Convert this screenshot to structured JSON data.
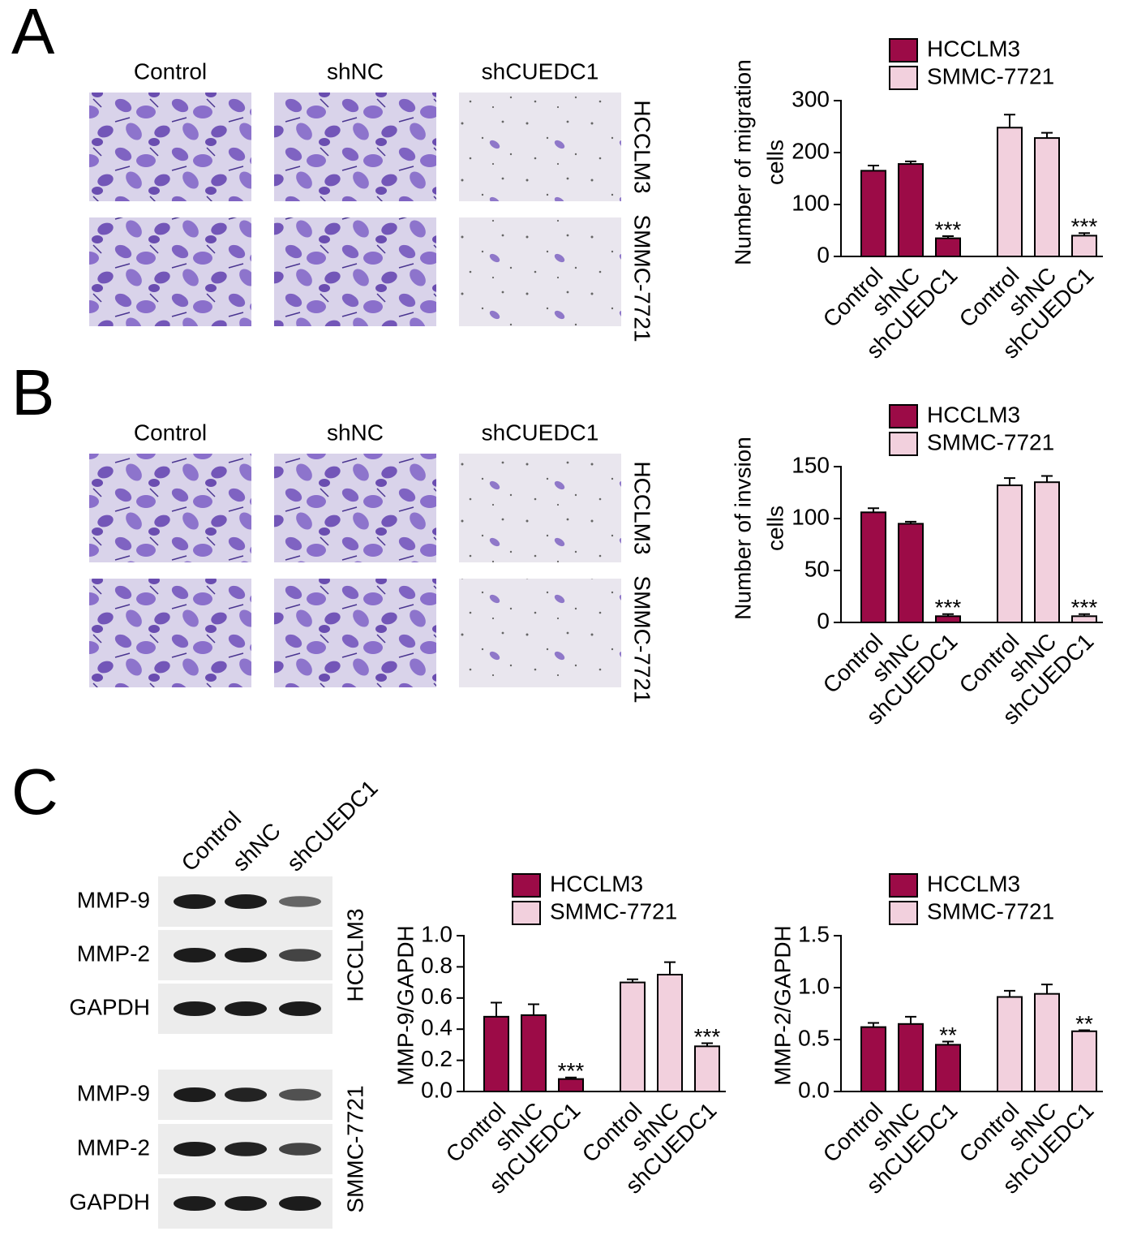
{
  "panel_a": {
    "label": "A",
    "columns": [
      "Control",
      "shNC",
      "shCUEDC1"
    ],
    "rows": [
      "HCCLM3",
      "SMMC-7721"
    ]
  },
  "panel_b": {
    "label": "B",
    "columns": [
      "Control",
      "shNC",
      "shCUEDC1"
    ],
    "rows": [
      "HCCLM3",
      "SMMC-7721"
    ]
  },
  "panel_c": {
    "label": "C",
    "columns": [
      "Control",
      "shNC",
      "shCUEDC1"
    ],
    "groups": [
      {
        "name": "HCCLM3",
        "rows": [
          "MMP-9",
          "MMP-2",
          "GAPDH"
        ]
      },
      {
        "name": "SMMC-7721",
        "rows": [
          "MMP-9",
          "MMP-2",
          "GAPDH"
        ]
      }
    ]
  },
  "chart_data": [
    {
      "type": "bar",
      "ylabel": [
        "Number of migration",
        "cells"
      ],
      "categories": [
        "Control",
        "shNC",
        "shCUEDC1"
      ],
      "ylim": [
        0,
        300
      ],
      "yticks": [
        0,
        100,
        200,
        300
      ],
      "series": [
        {
          "name": "HCCLM3",
          "color": "#9c0b47",
          "values": [
            165,
            178,
            35
          ],
          "errors": [
            10,
            5,
            4
          ],
          "annotations": [
            null,
            null,
            "***"
          ]
        },
        {
          "name": "SMMC-7721",
          "color": "#f2d0dd",
          "values": [
            248,
            228,
            40
          ],
          "errors": [
            25,
            10,
            5
          ],
          "annotations": [
            null,
            null,
            "***"
          ]
        }
      ]
    },
    {
      "type": "bar",
      "ylabel": [
        "Number of invsion",
        "cells"
      ],
      "categories": [
        "Control",
        "shNC",
        "shCUEDC1"
      ],
      "ylim": [
        0,
        150
      ],
      "yticks": [
        0,
        50,
        100,
        150
      ],
      "series": [
        {
          "name": "HCCLM3",
          "color": "#9c0b47",
          "values": [
            106,
            95,
            6
          ],
          "errors": [
            4,
            2,
            2
          ],
          "annotations": [
            null,
            null,
            "***"
          ]
        },
        {
          "name": "SMMC-7721",
          "color": "#f2d0dd",
          "values": [
            132,
            135,
            6
          ],
          "errors": [
            7,
            6,
            2
          ],
          "annotations": [
            null,
            null,
            "***"
          ]
        }
      ]
    },
    {
      "type": "bar",
      "ylabel": "MMP-9/GAPDH",
      "categories": [
        "Control",
        "shNC",
        "shCUEDC1"
      ],
      "ylim": [
        0,
        1.0
      ],
      "yticks": [
        {
          "value": 0,
          "label": "0.0"
        },
        0.2,
        0.4,
        0.6,
        0.8,
        {
          "value": 1.0,
          "label": "1.0"
        }
      ],
      "series": [
        {
          "name": "HCCLM3",
          "color": "#9c0b47",
          "values": [
            0.48,
            0.49,
            0.08
          ],
          "errors": [
            0.09,
            0.07,
            0.01
          ],
          "annotations": [
            null,
            null,
            "***"
          ]
        },
        {
          "name": "SMMC-7721",
          "color": "#f2d0dd",
          "values": [
            0.7,
            0.75,
            0.29
          ],
          "errors": [
            0.02,
            0.08,
            0.02
          ],
          "annotations": [
            null,
            null,
            "***"
          ]
        }
      ]
    },
    {
      "type": "bar",
      "ylabel": "MMP-2/GAPDH",
      "categories": [
        "Control",
        "shNC",
        "shCUEDC1"
      ],
      "ylim": [
        0,
        1.5
      ],
      "yticks": [
        {
          "value": 0,
          "label": "0.0"
        },
        0.5,
        {
          "value": 1.0,
          "label": "1.0"
        },
        1.5
      ],
      "series": [
        {
          "name": "HCCLM3",
          "color": "#9c0b47",
          "values": [
            0.62,
            0.65,
            0.45
          ],
          "errors": [
            0.04,
            0.07,
            0.03
          ],
          "annotations": [
            null,
            null,
            "**"
          ]
        },
        {
          "name": "SMMC-7721",
          "color": "#f2d0dd",
          "values": [
            0.91,
            0.94,
            0.58
          ],
          "errors": [
            0.06,
            0.09,
            0.01
          ],
          "annotations": [
            null,
            null,
            "**"
          ]
        }
      ]
    }
  ]
}
